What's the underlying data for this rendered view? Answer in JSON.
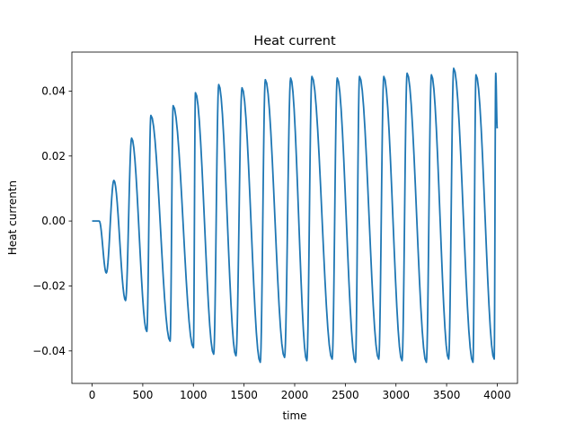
{
  "chart_data": {
    "type": "line",
    "title": "Heat current",
    "xlabel": "time",
    "ylabel": "Heat currentn",
    "xlim": [
      -200,
      4200
    ],
    "ylim": [
      -0.05,
      0.052
    ],
    "xticks": [
      0,
      500,
      1000,
      1500,
      2000,
      2500,
      3000,
      3500,
      4000
    ],
    "xtick_labels": [
      "0",
      "500",
      "1000",
      "1500",
      "2000",
      "2500",
      "3000",
      "3500",
      "4000"
    ],
    "yticks": [
      -0.04,
      -0.02,
      0.0,
      0.02,
      0.04
    ],
    "ytick_labels": [
      "−0.04",
      "−0.02",
      "0.00",
      "0.02",
      "0.04"
    ],
    "grid": false,
    "series": [
      {
        "color": "#1f77b4",
        "extrema": [
          [
            0,
            0.0
          ],
          [
            70,
            0.0
          ],
          [
            140,
            -0.016
          ],
          [
            215,
            0.0125
          ],
          [
            330,
            -0.0245
          ],
          [
            390,
            0.0255
          ],
          [
            540,
            -0.034
          ],
          [
            580,
            0.0325
          ],
          [
            770,
            -0.037
          ],
          [
            800,
            0.0355
          ],
          [
            1000,
            -0.039
          ],
          [
            1020,
            0.0395
          ],
          [
            1200,
            -0.041
          ],
          [
            1250,
            0.042
          ],
          [
            1420,
            -0.0415
          ],
          [
            1480,
            0.041
          ],
          [
            1660,
            -0.0435
          ],
          [
            1710,
            0.0435
          ],
          [
            1900,
            -0.042
          ],
          [
            1960,
            0.044
          ],
          [
            2120,
            -0.043
          ],
          [
            2170,
            0.0445
          ],
          [
            2370,
            -0.0425
          ],
          [
            2420,
            0.044
          ],
          [
            2600,
            -0.0435
          ],
          [
            2640,
            0.0445
          ],
          [
            2830,
            -0.0425
          ],
          [
            2880,
            0.0445
          ],
          [
            3060,
            -0.043
          ],
          [
            3110,
            0.0455
          ],
          [
            3300,
            -0.0435
          ],
          [
            3350,
            0.045
          ],
          [
            3520,
            -0.0425
          ],
          [
            3570,
            0.047
          ],
          [
            3760,
            -0.0435
          ],
          [
            3790,
            0.045
          ],
          [
            3970,
            -0.0425
          ],
          [
            3985,
            0.0455
          ],
          [
            4000,
            0.0285
          ]
        ]
      }
    ]
  }
}
